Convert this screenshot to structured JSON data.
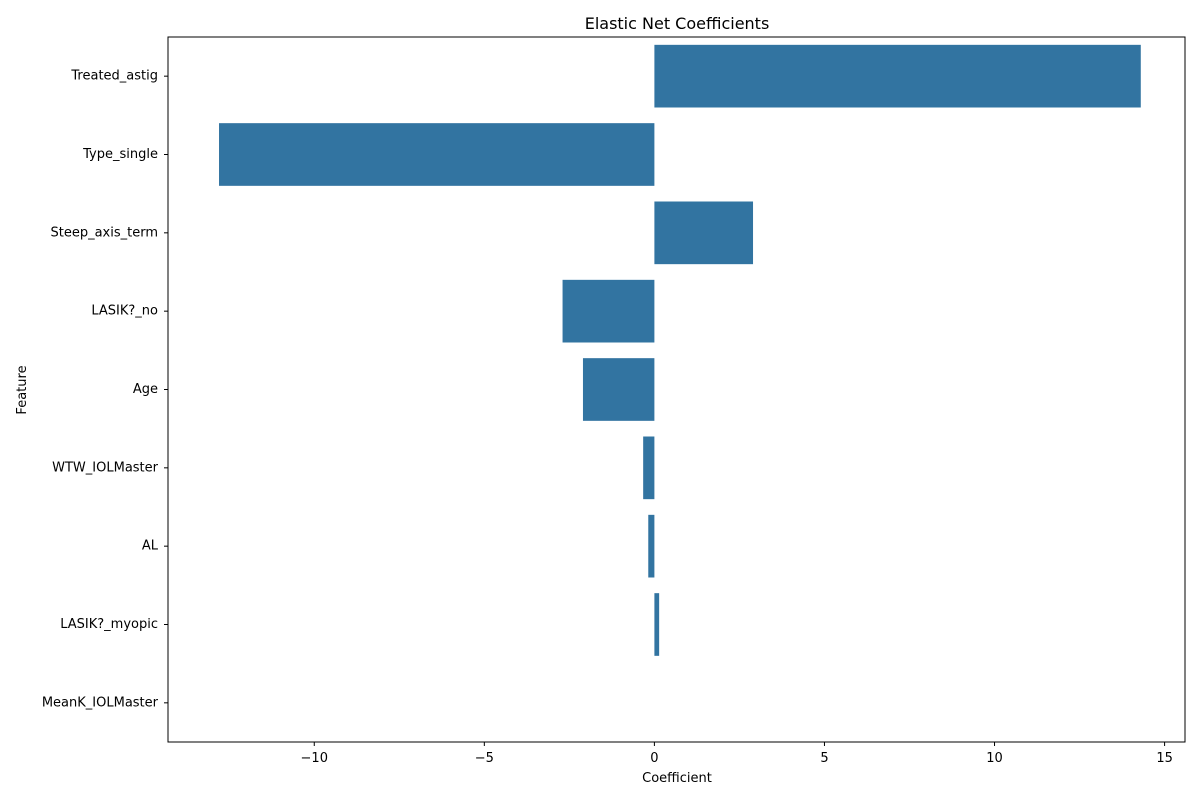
{
  "colors": {
    "bar": "#3274a1",
    "axis": "#000000",
    "background": "#ffffff"
  },
  "chart_data": {
    "type": "bar",
    "orientation": "horizontal",
    "title": "Elastic Net Coefficients",
    "xlabel": "Coefficient",
    "ylabel": "Feature",
    "categories": [
      "Treated_astig",
      "Type_single",
      "Steep_axis_term",
      "LASIK?_no",
      "Age",
      "WTW_IOLMaster",
      "AL",
      "LASIK?_myopic",
      "MeanK_IOLMaster"
    ],
    "values": [
      14.3,
      -12.8,
      2.9,
      -2.7,
      -2.1,
      -0.33,
      -0.18,
      0.14,
      0.0
    ],
    "xlim": [
      -14.3,
      15.6
    ],
    "xticks": [
      -10,
      -5,
      0,
      5,
      10,
      15
    ],
    "xtick_labels": [
      "−10",
      "−5",
      "0",
      "5",
      "10",
      "15"
    ],
    "grid": false
  }
}
